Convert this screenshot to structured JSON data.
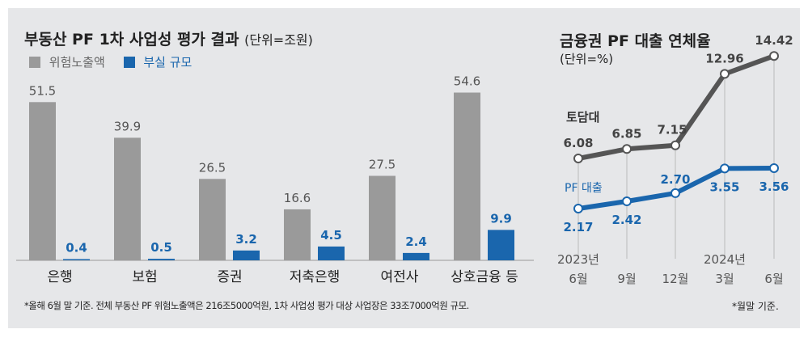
{
  "chart_data": [
    {
      "type": "bar",
      "title": "부동산 PF 1차 사업성 평가 결과",
      "unit": "(단위=조원)",
      "categories": [
        "은행",
        "보험",
        "증권",
        "저축은행",
        "여전사",
        "상호금융 등"
      ],
      "series": [
        {
          "name": "위험노출액",
          "color": "#9a9a9a",
          "values": [
            51.5,
            39.9,
            26.5,
            16.6,
            27.5,
            54.6
          ]
        },
        {
          "name": "부실 규모",
          "color": "#1a66ad",
          "values": [
            0.4,
            0.5,
            3.2,
            4.5,
            2.4,
            9.9
          ]
        }
      ],
      "note": "*올해 6월 말 기준. 전체 부동산 PF 위험노출액은 216조5000억원, 1차 사업성 평가 대상 사업장은 33조7000억원 규모."
    },
    {
      "type": "line",
      "title": "금융권 PF 대출 연체율",
      "unit": "(단위=%)",
      "categories": [
        [
          "2023년",
          "6월"
        ],
        [
          "",
          "9월"
        ],
        [
          "",
          "12월"
        ],
        [
          "2024년",
          "3월"
        ],
        [
          "",
          "6월"
        ]
      ],
      "series": [
        {
          "name": "토담대",
          "color": "#555555",
          "values": [
            6.08,
            6.85,
            7.15,
            12.96,
            14.42
          ]
        },
        {
          "name": "PF 대출",
          "color": "#1a66ad",
          "values": [
            2.17,
            2.42,
            2.7,
            3.55,
            3.56
          ]
        }
      ],
      "note": "*월말 기준."
    }
  ]
}
